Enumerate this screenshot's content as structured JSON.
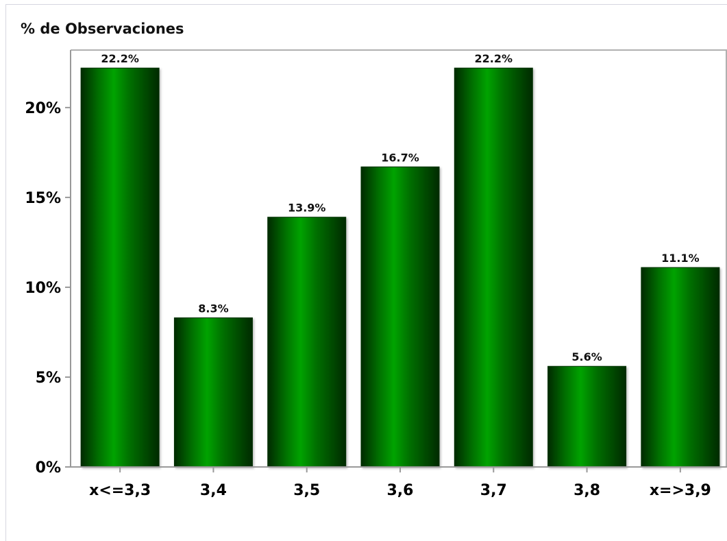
{
  "chart_data": {
    "type": "bar",
    "title": "",
    "xlabel": "",
    "ylabel": "% de Observaciones",
    "categories": [
      "x<=3,3",
      "3,4",
      "3,5",
      "3,6",
      "3,7",
      "3,8",
      "x=>3,9"
    ],
    "values": [
      22.2,
      8.3,
      13.9,
      16.7,
      22.2,
      5.6,
      11.1
    ],
    "data_labels": [
      "22.2%",
      "8.3%",
      "13.9%",
      "16.7%",
      "22.2%",
      "5.6%",
      "11.1%"
    ],
    "yticks": [
      0,
      5,
      10,
      15,
      20
    ],
    "ytick_labels": [
      "0%",
      "5%",
      "10%",
      "15%",
      "20%"
    ],
    "ylim": [
      0,
      23.2
    ],
    "grid": false,
    "legend": "none",
    "colors": {
      "bar_edge": "#003000",
      "bar_mid": "#009400",
      "bar_light": "#00a300",
      "bar_dark": "#002a00",
      "axis": "#999999"
    }
  }
}
